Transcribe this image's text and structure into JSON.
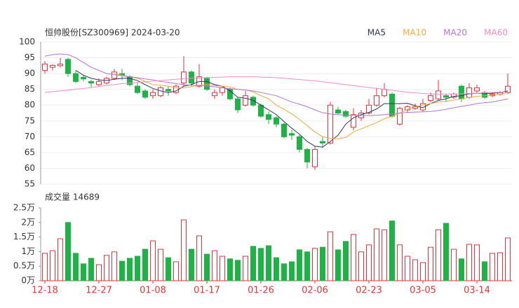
{
  "chart_data": [
    {
      "type": "candlestick",
      "title": "恒帅股份[SZ300969] 2024-03-20",
      "open": [
        91,
        92,
        92.5,
        94.5,
        90,
        88.8,
        87.5,
        86.5,
        87,
        88.5,
        90,
        89,
        86,
        84.5,
        83,
        83,
        85,
        84,
        87,
        90.5,
        86,
        88.5,
        83,
        84,
        85,
        82,
        80,
        82.5,
        80,
        77,
        76,
        74,
        71,
        70,
        66,
        60.5,
        68.5,
        68,
        78.5,
        78,
        73,
        76,
        77.5,
        80,
        83,
        83.5,
        74,
        78.5,
        79,
        78.5,
        81.5,
        82,
        83,
        82.5,
        86,
        82.5,
        84.5,
        84,
        83,
        83.5,
        84
      ],
      "high": [
        94,
        93,
        95,
        95,
        91,
        89.5,
        88,
        88.5,
        89,
        91.5,
        91.5,
        89.5,
        87,
        85,
        85,
        86,
        86,
        86.5,
        95.5,
        91,
        93,
        89,
        85,
        86,
        85.5,
        82.5,
        84.5,
        83,
        80.5,
        78,
        76.5,
        74.5,
        72,
        70.5,
        66.5,
        67,
        70,
        81,
        79.5,
        78.5,
        79,
        78.5,
        82,
        85.5,
        87,
        84,
        79.5,
        80,
        80.5,
        82,
        84,
        88,
        83.5,
        84,
        86.5,
        87,
        86.5,
        84.5,
        84,
        84.5,
        90
      ],
      "low": [
        90,
        91,
        92,
        89,
        87,
        87.5,
        85.5,
        86,
        86.5,
        88,
        88,
        86,
        83.5,
        82,
        82,
        82.5,
        83,
        83.5,
        86,
        86,
        85.5,
        84.5,
        82,
        83,
        81.5,
        77.5,
        79.5,
        79.5,
        76,
        74,
        73,
        69.5,
        69,
        65,
        60,
        59.5,
        66.5,
        67.5,
        77,
        76,
        72,
        75,
        77,
        79.5,
        82.5,
        76,
        73.5,
        77.5,
        78.5,
        78,
        81,
        81.5,
        81,
        82,
        81,
        82,
        84,
        82,
        82.5,
        83,
        83.5
      ],
      "close": [
        93,
        92.6,
        93,
        90,
        87.5,
        88.3,
        87,
        87.5,
        88.5,
        90.5,
        89.5,
        86.5,
        84,
        82.5,
        84,
        85.5,
        84.5,
        86,
        90.5,
        87,
        89,
        85,
        84,
        85.5,
        82,
        78.5,
        83,
        80,
        76.5,
        75.5,
        74,
        70,
        70.5,
        66,
        62,
        66,
        68,
        80,
        77.5,
        76.5,
        77,
        77.5,
        80,
        83,
        85,
        76.5,
        79,
        79.5,
        79.5,
        80.5,
        83,
        84.5,
        82.5,
        83.5,
        82,
        85.5,
        85.5,
        82.5,
        83.5,
        84,
        86
      ],
      "up_color": "#e8303a",
      "down_color": "#1db345",
      "series": [
        {
          "name": "MA5",
          "color": "#2e3366",
          "values": [
            null,
            null,
            null,
            null,
            91,
            89.5,
            88.5,
            88,
            87.8,
            88.2,
            88.5,
            88.5,
            87.8,
            86.5,
            85.3,
            84.5,
            84,
            84.5,
            86,
            86.5,
            87.5,
            87.5,
            86.5,
            86,
            84.5,
            82.5,
            82.2,
            81.5,
            80,
            78.5,
            77,
            74.8,
            72.7,
            70.8,
            68.5,
            67,
            66.7,
            68.5,
            70.5,
            74,
            76,
            77,
            77.7,
            78.8,
            80.5,
            80.5,
            80.5,
            80.6,
            79.8,
            79.2,
            80.5,
            81.5,
            82,
            82.8,
            83,
            83.6,
            83.8,
            83.7,
            83.8,
            84,
            84.5
          ]
        },
        {
          "name": "MA10",
          "color": "#f2a93b",
          "values": [
            null,
            null,
            null,
            null,
            null,
            null,
            null,
            null,
            null,
            90,
            89.5,
            89,
            88.5,
            87.5,
            86.5,
            86.3,
            86,
            85.5,
            85.5,
            85.8,
            86.3,
            86.5,
            86.2,
            86,
            85.8,
            85,
            84.8,
            84.2,
            83,
            82,
            80,
            78.7,
            77.2,
            75.5,
            73.5,
            71.5,
            70,
            69.5,
            69.3,
            69.8,
            71.5,
            72.5,
            73.5,
            74.5,
            75.7,
            76.5,
            77.5,
            78.7,
            79.5,
            80,
            80.5,
            81,
            81.2,
            81.6,
            82,
            82.5,
            82.8,
            83,
            83.2,
            83.5,
            84
          ]
        },
        {
          "name": "MA20",
          "color": "#b674d6",
          "values": [
            95.5,
            96,
            96.2,
            96,
            95,
            93.5,
            92,
            91,
            90,
            89.7,
            89.3,
            89,
            88.7,
            88.3,
            88,
            87.5,
            87.2,
            86.8,
            86.5,
            86.3,
            86.2,
            86,
            85.8,
            85.5,
            85.2,
            85,
            84.8,
            84.5,
            84,
            83.5,
            83,
            82,
            81,
            80.3,
            79.5,
            78.5,
            77.6,
            77.2,
            77,
            76.8,
            76.8,
            76.7,
            76.7,
            76.8,
            77,
            77.2,
            77.5,
            77.7,
            77.8,
            77.9,
            78,
            78.3,
            78.7,
            79.2,
            79.6,
            80,
            80.5,
            80.8,
            81,
            81.5,
            82
          ]
        },
        {
          "name": "MA60",
          "color": "#f28ac8",
          "values": [
            84,
            84.3,
            84.5,
            84.8,
            85,
            85.3,
            85.6,
            85.9,
            86.2,
            86.5,
            86.8,
            87,
            87.2,
            87.4,
            87.6,
            87.8,
            88,
            88.2,
            88.4,
            88.5,
            88.6,
            88.7,
            88.8,
            88.9,
            89,
            89,
            89,
            89,
            88.9,
            88.8,
            88.7,
            88.5,
            88.3,
            88.1,
            87.9,
            87.7,
            87.4,
            87.1,
            86.8,
            86.5,
            86.2,
            85.9,
            85.6,
            85.3,
            85,
            84.7,
            84.4,
            84.1,
            83.9,
            83.7,
            83.5,
            83.5,
            83.5,
            83.5,
            83.6,
            83.7,
            83.8,
            83.9,
            84,
            84.1,
            84.2
          ]
        }
      ],
      "ylim": [
        55,
        100
      ],
      "yticks": [
        55,
        60,
        65,
        70,
        75,
        80,
        85,
        90,
        95,
        100
      ],
      "grid": true
    },
    {
      "type": "bar",
      "title": "成交量 14689",
      "categories": [
        "12-18",
        null,
        null,
        null,
        null,
        null,
        null,
        "12-27",
        null,
        null,
        null,
        null,
        null,
        null,
        "01-08",
        null,
        null,
        null,
        null,
        null,
        null,
        "01-17",
        null,
        null,
        null,
        null,
        null,
        null,
        "01-26",
        null,
        null,
        null,
        null,
        null,
        null,
        "02-06",
        null,
        null,
        null,
        null,
        null,
        null,
        "02-23",
        null,
        null,
        null,
        null,
        null,
        null,
        "03-05",
        null,
        null,
        null,
        null,
        null,
        null,
        "03-14",
        null,
        null,
        null,
        null
      ],
      "values": [
        0.94,
        1.03,
        1.44,
        2.0,
        0.94,
        0.58,
        0.77,
        0.55,
        0.87,
        0.99,
        0.67,
        0.77,
        0.84,
        1.08,
        1.37,
        1.08,
        0.79,
        0.65,
        2.09,
        1.08,
        1.54,
        0.91,
        1.03,
        0.84,
        0.75,
        0.7,
        0.84,
        1.18,
        1.11,
        1.2,
        0.79,
        0.58,
        0.65,
        1.06,
        0.99,
        1.11,
        1.15,
        1.68,
        1.06,
        1.35,
        1.59,
        0.99,
        1.23,
        1.78,
        1.75,
        2.05,
        1.23,
        0.84,
        0.72,
        0.62,
        1.15,
        1.75,
        1.97,
        1.08,
        0.75,
        1.25,
        1.23,
        0.65,
        0.94,
        0.96,
        1.4689
      ],
      "ylim": [
        0,
        2.5
      ],
      "yticks": [
        {
          "value": 0,
          "label": "0万"
        },
        {
          "value": 0.5,
          "label": "0.5万"
        },
        {
          "value": 1,
          "label": "1万"
        },
        {
          "value": 1.5,
          "label": "1.5万"
        },
        {
          "value": 2,
          "label": "2万"
        },
        {
          "value": 2.5,
          "label": "2.5万"
        }
      ],
      "axis_color": "#d23a3a"
    }
  ]
}
